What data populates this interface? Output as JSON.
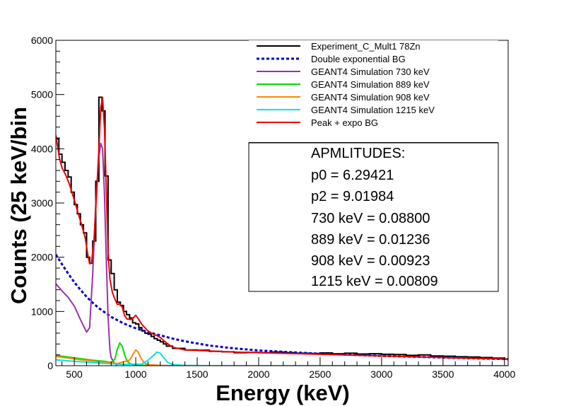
{
  "chart_data": {
    "type": "line",
    "xlabel": "Energy (keV)",
    "ylabel": "Counts (25 keV/bin",
    "xlim": [
      350,
      4030
    ],
    "ylim": [
      0,
      6000
    ],
    "x_ticks": [
      500,
      1000,
      1500,
      2000,
      2500,
      3000,
      3500,
      4000
    ],
    "y_ticks": [
      0,
      1000,
      2000,
      3000,
      4000,
      5000,
      6000
    ],
    "grid": false,
    "legend_placement": "top-right",
    "histogram": {
      "name": "Experiment_C_Mult1 78Zn",
      "color": "#000000",
      "x": [
        350,
        375,
        400,
        425,
        450,
        475,
        500,
        525,
        550,
        575,
        600,
        625,
        650,
        675,
        700,
        725,
        750,
        775,
        800,
        825,
        850,
        875,
        900,
        925,
        950,
        975,
        1000,
        1025,
        1050,
        1075,
        1100,
        1125,
        1150,
        1175,
        1200,
        1225,
        1250,
        1300,
        1400,
        1500,
        1600,
        1700,
        1800,
        1900,
        2000,
        2100,
        2200,
        2300,
        2400,
        2500,
        2600,
        2700,
        2800,
        2900,
        3000,
        3100,
        3200,
        3300,
        3400,
        3500,
        3600,
        3700,
        3800,
        3900,
        4000
      ],
      "y": [
        4180,
        3900,
        3750,
        3600,
        3480,
        3200,
        2970,
        2800,
        2600,
        2450,
        2000,
        1890,
        2300,
        3400,
        4950,
        4700,
        3500,
        1950,
        1700,
        1400,
        1170,
        1110,
        1000,
        940,
        880,
        790,
        770,
        700,
        640,
        600,
        580,
        540,
        500,
        470,
        440,
        400,
        360,
        320,
        290,
        285,
        265,
        255,
        240,
        245,
        240,
        250,
        240,
        230,
        225,
        235,
        220,
        230,
        215,
        220,
        210,
        205,
        190,
        200,
        180,
        175,
        165,
        160,
        150,
        140,
        120
      ]
    },
    "series": [
      {
        "name": "Double exponential BG",
        "color": "#0000cc",
        "dashed": true,
        "x": [
          350,
          400,
          450,
          500,
          550,
          600,
          650,
          700,
          750,
          800,
          850,
          900,
          1000,
          1100,
          1200,
          1300,
          1400,
          1600,
          1800,
          2000,
          2500,
          3000,
          3500,
          4030
        ],
        "y": [
          2050,
          1870,
          1700,
          1540,
          1400,
          1270,
          1160,
          1060,
          980,
          900,
          840,
          780,
          690,
          620,
          560,
          500,
          450,
          370,
          320,
          280,
          220,
          180,
          150,
          120
        ]
      },
      {
        "name": "GEANT4 Simulation 730 keV",
        "color": "#9933aa",
        "x": [
          350,
          400,
          450,
          500,
          550,
          600,
          625,
          650,
          675,
          700,
          715,
          730,
          745,
          760,
          775,
          790,
          800,
          825,
          850
        ],
        "y": [
          1510,
          1380,
          1260,
          1100,
          850,
          620,
          700,
          1700,
          3000,
          3850,
          4100,
          4000,
          3200,
          2000,
          900,
          300,
          150,
          50,
          10
        ],
        "peak_only": false
      },
      {
        "name": "GEANT4 Simulation 889 keV",
        "color": "#00dd00",
        "x": [
          350,
          450,
          550,
          650,
          750,
          800,
          830,
          850,
          870,
          890,
          910,
          930,
          960,
          1000,
          1100,
          1300
        ],
        "y": [
          190,
          160,
          130,
          100,
          80,
          60,
          120,
          300,
          420,
          360,
          200,
          80,
          30,
          10,
          5,
          0
        ]
      },
      {
        "name": "GEANT4 Simulation 908 keV",
        "color": "#ff8800",
        "x": [
          350,
          450,
          550,
          650,
          750,
          850,
          950,
          975,
          1000,
          1020,
          1040,
          1070,
          1100,
          1200,
          1300
        ],
        "y": [
          170,
          140,
          110,
          85,
          65,
          40,
          100,
          200,
          290,
          250,
          150,
          50,
          20,
          5,
          0
        ]
      },
      {
        "name": "GEANT4 Simulation 1215 keV",
        "color": "#00e5e5",
        "x": [
          350,
          500,
          700,
          900,
          1050,
          1100,
          1150,
          1170,
          1200,
          1230,
          1260,
          1300,
          1400,
          1600,
          2000,
          4030
        ],
        "y": [
          110,
          80,
          50,
          25,
          30,
          100,
          200,
          250,
          230,
          140,
          60,
          20,
          5,
          0,
          0,
          0
        ]
      },
      {
        "name": " Peak + expo BG",
        "color": "#ee0000",
        "x": [
          350,
          380,
          400,
          430,
          460,
          500,
          530,
          560,
          590,
          610,
          625,
          640,
          660,
          680,
          700,
          715,
          730,
          745,
          760,
          775,
          790,
          810,
          830,
          850,
          870,
          890,
          910,
          930,
          960,
          980,
          1000,
          1020,
          1050,
          1100,
          1150,
          1170,
          1200,
          1250,
          1300,
          1400,
          1600,
          1800,
          2000,
          2500,
          3000,
          3500,
          4030
        ],
        "y": [
          4250,
          3820,
          3650,
          3520,
          3350,
          3060,
          2820,
          2600,
          2350,
          2050,
          1880,
          1900,
          2300,
          3100,
          4000,
          4750,
          4950,
          4400,
          3300,
          2100,
          1600,
          1350,
          1230,
          1130,
          1140,
          1080,
          920,
          860,
          850,
          880,
          930,
          870,
          760,
          640,
          570,
          560,
          520,
          420,
          340,
          290,
          270,
          250,
          240,
          210,
          180,
          150,
          120
        ]
      }
    ],
    "legend": [
      "Experiment_C_Mult1 78Zn",
      "Double exponential BG",
      "GEANT4 Simulation 730 keV",
      "GEANT4 Simulation 889 keV",
      "GEANT4 Simulation 908 keV",
      "GEANT4 Simulation 1215 keV",
      " Peak + expo BG"
    ],
    "amplitudes": {
      "title": "APMLITUDES:",
      "lines": [
        "p0 = 6.29421",
        "p2 = 9.01984",
        "730 keV = 0.08800",
        "889 keV = 0.01236",
        "908 keV = 0.00923",
        "1215 keV = 0.00809"
      ]
    }
  }
}
